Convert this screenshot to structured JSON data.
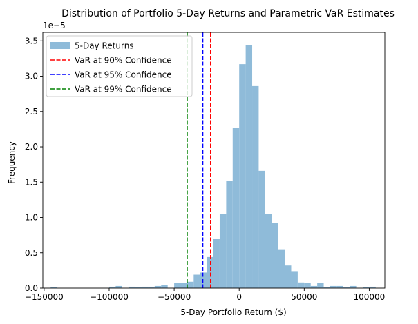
{
  "chart_data": {
    "type": "bar",
    "title": "Distribution of Portfolio 5-Day Returns and Parametric VaR Estimates",
    "xlabel": "5-Day Portfolio Return ($)",
    "ylabel": "Frequency",
    "y_scale_label": "1e−5",
    "xlim": [
      -151000,
      112000
    ],
    "ylim": [
      0,
      3.62
    ],
    "x_ticks": [
      -150000,
      -100000,
      -50000,
      0,
      50000,
      100000
    ],
    "x_tick_labels": [
      "−150000",
      "−100000",
      "−50000",
      "0",
      "50000",
      "100000"
    ],
    "y_ticks": [
      0,
      0.5,
      1.0,
      1.5,
      2.0,
      2.5,
      3.0,
      3.5
    ],
    "y_tick_labels": [
      "0.0",
      "0.5",
      "1.0",
      "1.5",
      "2.0",
      "2.5",
      "3.0",
      "3.5"
    ],
    "histogram": {
      "name": "5-Day Returns",
      "color": "#8fbbd9",
      "bin_edges": [
        -145000,
        -140000,
        -100000,
        -95000,
        -90000,
        -85000,
        -80000,
        -75000,
        -70000,
        -65000,
        -60000,
        -55000,
        -50000,
        -45000,
        -40000,
        -35000,
        -30000,
        -25000,
        -20000,
        -15000,
        -10000,
        -5000,
        0,
        5000,
        10000,
        15000,
        20000,
        25000,
        30000,
        35000,
        40000,
        45000,
        50000,
        55000,
        60000,
        65000,
        70000,
        75000,
        80000,
        85000,
        90000,
        95000,
        100000,
        105000
      ],
      "values": [
        0.01,
        0,
        0.02,
        0.03,
        0,
        0.02,
        0.01,
        0.02,
        0.02,
        0.03,
        0.04,
        0,
        0.07,
        0.07,
        0.09,
        0.19,
        0.22,
        0.44,
        0.7,
        1.05,
        1.52,
        2.27,
        3.17,
        3.44,
        2.86,
        1.66,
        1.05,
        0.92,
        0.55,
        0.32,
        0.24,
        0.08,
        0.07,
        0.03,
        0.07,
        0.01,
        0.03,
        0.03,
        0.01,
        0.03,
        0,
        0.01,
        0.02
      ]
    },
    "var_lines": [
      {
        "name": "VaR at 90% Confidence",
        "x": -22000,
        "color": "#ff0000"
      },
      {
        "name": "VaR at 95% Confidence",
        "x": -28000,
        "color": "#0000ff"
      },
      {
        "name": "VaR at 99% Confidence",
        "x": -40000,
        "color": "#008000"
      }
    ],
    "legend_position": "upper-left"
  }
}
